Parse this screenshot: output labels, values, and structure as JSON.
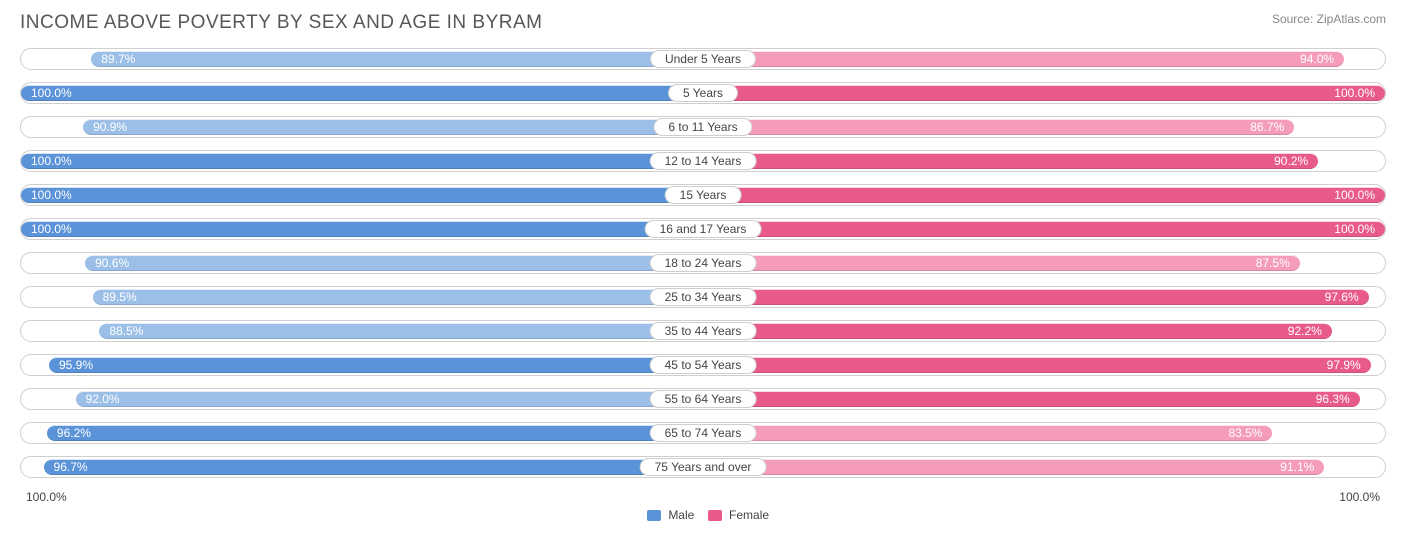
{
  "title": "INCOME ABOVE POVERTY BY SEX AND AGE IN BYRAM",
  "source": "Source: ZipAtlas.com",
  "axis": {
    "left": "100.0%",
    "right": "100.0%",
    "max": 100.0
  },
  "legend": {
    "male": "Male",
    "female": "Female"
  },
  "colors": {
    "male_dark": "#5b93d8",
    "male_light": "#9cbfe7",
    "female_dark": "#e85b88",
    "female_light": "#f49cba",
    "track_border": "#cfcfcf",
    "background": "#ffffff",
    "title_color": "#555759",
    "text_color": "#444444"
  },
  "chart": {
    "type": "diverging-bar",
    "rows": [
      {
        "label": "Under 5 Years",
        "male": 89.7,
        "female": 94.0,
        "male_dark": false,
        "female_dark": false
      },
      {
        "label": "5 Years",
        "male": 100.0,
        "female": 100.0,
        "male_dark": true,
        "female_dark": true
      },
      {
        "label": "6 to 11 Years",
        "male": 90.9,
        "female": 86.7,
        "male_dark": false,
        "female_dark": false
      },
      {
        "label": "12 to 14 Years",
        "male": 100.0,
        "female": 90.2,
        "male_dark": true,
        "female_dark": true
      },
      {
        "label": "15 Years",
        "male": 100.0,
        "female": 100.0,
        "male_dark": true,
        "female_dark": true
      },
      {
        "label": "16 and 17 Years",
        "male": 100.0,
        "female": 100.0,
        "male_dark": true,
        "female_dark": true
      },
      {
        "label": "18 to 24 Years",
        "male": 90.6,
        "female": 87.5,
        "male_dark": false,
        "female_dark": false
      },
      {
        "label": "25 to 34 Years",
        "male": 89.5,
        "female": 97.6,
        "male_dark": false,
        "female_dark": true
      },
      {
        "label": "35 to 44 Years",
        "male": 88.5,
        "female": 92.2,
        "male_dark": false,
        "female_dark": true
      },
      {
        "label": "45 to 54 Years",
        "male": 95.9,
        "female": 97.9,
        "male_dark": true,
        "female_dark": true
      },
      {
        "label": "55 to 64 Years",
        "male": 92.0,
        "female": 96.3,
        "male_dark": false,
        "female_dark": true
      },
      {
        "label": "65 to 74 Years",
        "male": 96.2,
        "female": 83.5,
        "male_dark": true,
        "female_dark": false
      },
      {
        "label": "75 Years and over",
        "male": 96.7,
        "female": 91.1,
        "male_dark": true,
        "female_dark": false
      }
    ]
  }
}
